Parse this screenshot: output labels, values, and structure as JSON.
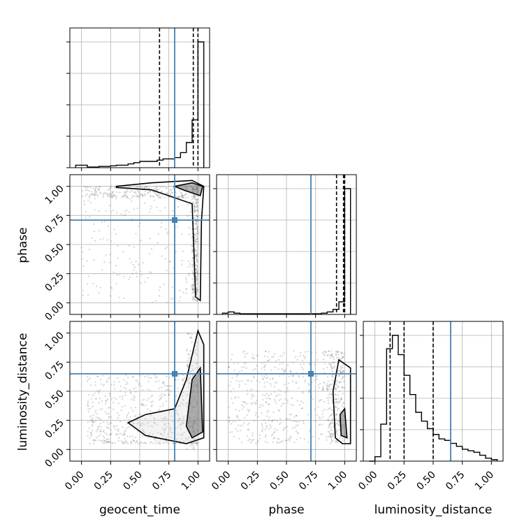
{
  "colors": {
    "truth": "#4682b4",
    "hist": "#000000",
    "grid": "#b0b0b0",
    "quantile": "#000000",
    "samples": "#808080"
  },
  "chart_data": {
    "type": "corner",
    "parameters": [
      "geocent_time",
      "phase",
      "luminosity_distance"
    ],
    "axis_range": [
      -0.1,
      1.1
    ],
    "ticks": [
      0.0,
      0.25,
      0.5,
      0.75,
      1.0
    ],
    "tick_labels": [
      "0.00",
      "0.25",
      "0.50",
      "0.75",
      "1.00"
    ],
    "truths": {
      "geocent_time": 0.8,
      "phase": 0.71,
      "luminosity_distance": 0.65
    },
    "quantiles": {
      "geocent_time": [
        0.67,
        0.96,
        1.0
      ],
      "phase": [
        0.93,
        0.99,
        1.0
      ],
      "luminosity_distance": [
        0.13,
        0.25,
        0.5
      ]
    },
    "histograms": {
      "geocent_time": {
        "bins": [
          -0.05,
          0.0,
          0.05,
          0.1,
          0.15,
          0.2,
          0.25,
          0.3,
          0.35,
          0.4,
          0.45,
          0.5,
          0.55,
          0.6,
          0.65,
          0.7,
          0.75,
          0.8,
          0.85,
          0.9,
          0.95,
          1.0,
          1.05
        ],
        "counts": [
          0.02,
          0.02,
          0.005,
          0.005,
          0.01,
          0.01,
          0.015,
          0.02,
          0.02,
          0.03,
          0.04,
          0.05,
          0.05,
          0.05,
          0.06,
          0.07,
          0.07,
          0.08,
          0.12,
          0.2,
          0.38,
          1.0
        ]
      },
      "phase": {
        "bins": [
          -0.05,
          0.0,
          0.05,
          0.1,
          0.15,
          0.2,
          0.25,
          0.3,
          0.35,
          0.4,
          0.45,
          0.5,
          0.55,
          0.6,
          0.65,
          0.7,
          0.75,
          0.8,
          0.85,
          0.9,
          0.95,
          1.0,
          1.05
        ],
        "counts": [
          0.01,
          0.02,
          0.01,
          0.005,
          0.005,
          0.005,
          0.005,
          0.005,
          0.005,
          0.005,
          0.005,
          0.005,
          0.005,
          0.005,
          0.005,
          0.005,
          0.005,
          0.01,
          0.02,
          0.04,
          0.1,
          1.0
        ]
      },
      "luminosity_distance": {
        "bins": [
          -0.05,
          0.0,
          0.05,
          0.1,
          0.15,
          0.2,
          0.25,
          0.3,
          0.35,
          0.4,
          0.45,
          0.5,
          0.55,
          0.6,
          0.65,
          0.7,
          0.75,
          0.8,
          0.85,
          0.9,
          0.95,
          1.0,
          1.05
        ],
        "counts": [
          0.0,
          0.03,
          0.25,
          0.76,
          0.85,
          0.72,
          0.58,
          0.45,
          0.33,
          0.27,
          0.22,
          0.18,
          0.15,
          0.14,
          0.12,
          0.1,
          0.08,
          0.07,
          0.06,
          0.04,
          0.02,
          0.01
        ]
      }
    }
  }
}
